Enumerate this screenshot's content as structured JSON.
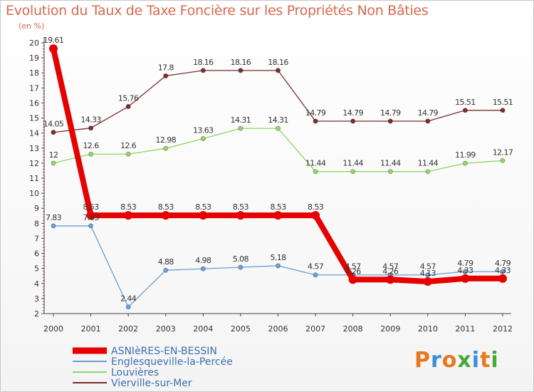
{
  "title": "Evolution du Taux de Taxe Foncière sur les Propriétés Non Bâties",
  "unit_label": "(en %)",
  "brand": {
    "name": "Proxiti",
    "letters": [
      {
        "ch": "P",
        "color": "#e8781e"
      },
      {
        "ch": "r",
        "color": "#3a8fd6"
      },
      {
        "ch": "o",
        "color": "#e8781e"
      },
      {
        "ch": "x",
        "color": "#4aa83b"
      },
      {
        "ch": "i",
        "color": "#3a8fd6"
      },
      {
        "ch": "t",
        "color": "#e8781e"
      },
      {
        "ch": "i",
        "color": "#4aa83b"
      }
    ]
  },
  "chart_data": {
    "type": "line",
    "title": "Evolution du Taux de Taxe Foncière sur les Propriétés Non Bâties",
    "ylabel": "(en %)",
    "xlabel": "",
    "ylim": [
      2,
      20
    ],
    "yticks": [
      2,
      3,
      4,
      5,
      6,
      7,
      8,
      9,
      10,
      11,
      12,
      13,
      14,
      15,
      16,
      17,
      18,
      19,
      20
    ],
    "grid": false,
    "legend_position": "bottom-left",
    "x": [
      "2000",
      "2001",
      "2002",
      "2003",
      "2004",
      "2005",
      "2006",
      "2007",
      "2008",
      "2009",
      "2010",
      "2011",
      "2012"
    ],
    "series": [
      {
        "name": "Vierville-sur-Mer",
        "color": "#7b2e2e",
        "values": [
          14.05,
          14.33,
          15.76,
          17.8,
          18.16,
          18.16,
          18.16,
          14.79,
          14.79,
          14.79,
          14.79,
          15.51,
          15.51
        ],
        "labels": [
          "14.05",
          "14.33",
          "15.76",
          "17.8",
          "18.16",
          "18.16",
          "18.16",
          "14.79",
          "14.79",
          "14.79",
          "14.79",
          "15.51",
          "15.51"
        ]
      },
      {
        "name": "Louvières",
        "color": "#8fd46a",
        "values": [
          12,
          12.6,
          12.6,
          12.98,
          13.63,
          14.31,
          14.31,
          11.44,
          11.44,
          11.44,
          11.44,
          11.99,
          12.17
        ],
        "labels": [
          "12",
          "12.6",
          "12.6",
          "12.98",
          "13.63",
          "14.31",
          "14.31",
          "11.44",
          "11.44",
          "11.44",
          "11.44",
          "11.99",
          "12.17"
        ]
      },
      {
        "name": "Englesqueville-la-Percée",
        "color": "#6b9fd0",
        "values": [
          7.83,
          7.83,
          2.44,
          4.88,
          4.98,
          5.08,
          5.18,
          4.57,
          4.57,
          4.57,
          4.57,
          4.79,
          4.79
        ],
        "labels": [
          "7.83",
          "7.83",
          "2.44",
          "4.88",
          "4.98",
          "5.08",
          "5.18",
          "4.57",
          "4.57",
          "4.57",
          "4.57",
          "4.79",
          "4.79"
        ]
      },
      {
        "name": "ASNIèRES-EN-BESSIN",
        "color": "#e60000",
        "values": [
          19.61,
          8.53,
          8.53,
          8.53,
          8.53,
          8.53,
          8.53,
          8.53,
          4.26,
          4.26,
          4.13,
          4.33,
          4.33
        ],
        "labels": [
          "19.61",
          "8.53",
          "8.53",
          "8.53",
          "8.53",
          "8.53",
          "8.53",
          "8.53",
          "4.26",
          "4.26",
          "4.13",
          "4.33",
          "4.33"
        ]
      }
    ],
    "legend": [
      "ASNIèRES-EN-BESSIN",
      "Englesqueville-la-Percée",
      "Louvières",
      "Vierville-sur-Mer"
    ]
  }
}
